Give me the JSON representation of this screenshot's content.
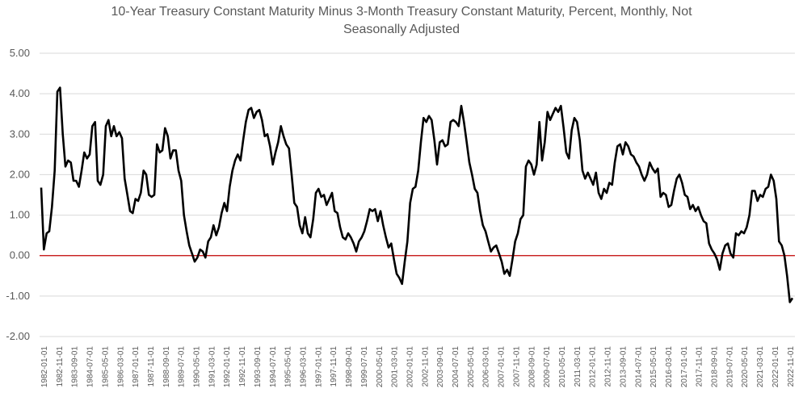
{
  "chart_data": {
    "type": "line",
    "title_lines": [
      "10-Year Treasury Constant Maturity Minus 3-Month Treasury Constant Maturity, Percent, Monthly, Not",
      "Seasonally Adjusted"
    ],
    "xlabel": "",
    "ylabel": "",
    "ylim": [
      -2,
      5
    ],
    "yticks": [
      "5.00",
      "4.00",
      "3.00",
      "2.00",
      "1.00",
      "0.00",
      "-1.00",
      "-2.00"
    ],
    "xtick_labels": [
      "1982-01-01",
      "1982-11-01",
      "1983-09-01",
      "1984-07-01",
      "1985-05-01",
      "1986-03-01",
      "1987-01-01",
      "1987-11-01",
      "1988-09-01",
      "1989-07-01",
      "1990-05-01",
      "1991-03-01",
      "1992-01-01",
      "1992-11-01",
      "1993-09-01",
      "1994-07-01",
      "1995-05-01",
      "1996-03-01",
      "1997-01-01",
      "1997-11-01",
      "1998-09-01",
      "1999-07-01",
      "2000-05-01",
      "2001-03-01",
      "2002-01-01",
      "2002-11-01",
      "2003-09-01",
      "2004-07-01",
      "2005-05-01",
      "2006-03-01",
      "2007-01-01",
      "2007-11-01",
      "2008-09-01",
      "2009-07-01",
      "2010-05-01",
      "2011-03-01",
      "2012-01-01",
      "2012-11-01",
      "2013-09-01",
      "2014-07-01",
      "2015-05-01",
      "2016-03-01",
      "2017-01-01",
      "2017-11-01",
      "2018-09-01",
      "2019-07-01",
      "2020-05-01",
      "2021-03-01",
      "2022-01-01",
      "2022-11-01"
    ],
    "grid": true,
    "legend": "none",
    "zero_line": true,
    "colors": {
      "line": "#000000",
      "grid": "#d9d9d9",
      "zero": "#c00000",
      "text": "#595959"
    },
    "series": [
      {
        "points": [
          [
            "1982-01",
            1.68
          ],
          [
            "1982-02",
            0.15
          ],
          [
            "1982-03",
            0.55
          ],
          [
            "1982-05",
            0.6
          ],
          [
            "1982-07",
            1.2
          ],
          [
            "1982-08",
            2.1
          ],
          [
            "1982-09",
            4.05
          ],
          [
            "1982-10",
            4.15
          ],
          [
            "1982-11",
            3.0
          ],
          [
            "1982-12",
            2.2
          ],
          [
            "1983-01",
            2.35
          ],
          [
            "1983-03",
            2.3
          ],
          [
            "1983-04",
            1.85
          ],
          [
            "1983-06",
            1.85
          ],
          [
            "1983-07",
            1.7
          ],
          [
            "1983-09",
            2.1
          ],
          [
            "1983-11",
            2.55
          ],
          [
            "1984-01",
            2.4
          ],
          [
            "1984-03",
            2.5
          ],
          [
            "1984-04",
            3.2
          ],
          [
            "1984-05",
            3.3
          ],
          [
            "1984-06",
            1.85
          ],
          [
            "1984-07",
            1.75
          ],
          [
            "1984-08",
            2.0
          ],
          [
            "1984-09",
            3.2
          ],
          [
            "1984-10",
            3.35
          ],
          [
            "1984-11",
            2.95
          ],
          [
            "1985-01",
            3.2
          ],
          [
            "1985-03",
            2.95
          ],
          [
            "1985-05",
            3.05
          ],
          [
            "1985-07",
            2.9
          ],
          [
            "1985-08",
            1.9
          ],
          [
            "1985-09",
            1.5
          ],
          [
            "1985-10",
            1.1
          ],
          [
            "1985-11",
            1.05
          ],
          [
            "1986-01",
            1.4
          ],
          [
            "1986-03",
            1.35
          ],
          [
            "1986-04",
            1.55
          ],
          [
            "1986-05",
            2.1
          ],
          [
            "1986-06",
            2.0
          ],
          [
            "1986-07",
            1.5
          ],
          [
            "1986-08",
            1.45
          ],
          [
            "1986-10",
            1.5
          ],
          [
            "1986-11",
            2.75
          ],
          [
            "1987-01",
            2.55
          ],
          [
            "1987-03",
            2.6
          ],
          [
            "1987-04",
            3.15
          ],
          [
            "1987-06",
            2.95
          ],
          [
            "1987-07",
            2.4
          ],
          [
            "1987-08",
            2.6
          ],
          [
            "1987-10",
            2.6
          ],
          [
            "1987-11",
            2.1
          ],
          [
            "1988-01",
            1.85
          ],
          [
            "1988-03",
            1.0
          ],
          [
            "1988-05",
            0.6
          ],
          [
            "1988-07",
            0.25
          ],
          [
            "1988-09",
            0.05
          ],
          [
            "1988-10",
            -0.15
          ],
          [
            "1988-11",
            -0.05
          ],
          [
            "1989-01",
            0.15
          ],
          [
            "1989-02",
            0.1
          ],
          [
            "1989-04",
            -0.05
          ],
          [
            "1989-05",
            0.35
          ],
          [
            "1989-07",
            0.45
          ],
          [
            "1989-08",
            0.75
          ],
          [
            "1989-09",
            0.5
          ],
          [
            "1989-10",
            0.7
          ],
          [
            "1989-12",
            1.05
          ],
          [
            "1990-02",
            1.3
          ],
          [
            "1990-03",
            1.1
          ],
          [
            "1990-05",
            1.7
          ],
          [
            "1990-07",
            2.1
          ],
          [
            "1990-08",
            2.35
          ],
          [
            "1990-10",
            2.5
          ],
          [
            "1990-12",
            2.35
          ],
          [
            "1991-02",
            2.85
          ],
          [
            "1991-04",
            3.3
          ],
          [
            "1991-06",
            3.6
          ],
          [
            "1991-07",
            3.65
          ],
          [
            "1991-09",
            3.4
          ],
          [
            "1991-10",
            3.55
          ],
          [
            "1991-12",
            3.6
          ],
          [
            "1992-01",
            3.35
          ],
          [
            "1992-03",
            2.95
          ],
          [
            "1992-04",
            3.0
          ],
          [
            "1992-06",
            2.7
          ],
          [
            "1992-08",
            2.25
          ],
          [
            "1992-09",
            2.55
          ],
          [
            "1992-11",
            2.8
          ],
          [
            "1992-12",
            3.2
          ],
          [
            "1993-01",
            2.95
          ],
          [
            "1993-03",
            2.75
          ],
          [
            "1993-05",
            2.65
          ],
          [
            "1993-07",
            2.0
          ],
          [
            "1993-09",
            1.3
          ],
          [
            "1993-10",
            1.2
          ],
          [
            "1993-11",
            0.75
          ],
          [
            "1993-12",
            0.55
          ],
          [
            "1994-02",
            0.95
          ],
          [
            "1994-04",
            0.55
          ],
          [
            "1994-05",
            0.45
          ],
          [
            "1994-07",
            0.9
          ],
          [
            "1994-09",
            1.55
          ],
          [
            "1994-10",
            1.65
          ],
          [
            "1994-12",
            1.45
          ],
          [
            "1995-01",
            1.5
          ],
          [
            "1995-03",
            1.25
          ],
          [
            "1995-04",
            1.4
          ],
          [
            "1995-06",
            1.55
          ],
          [
            "1995-08",
            1.1
          ],
          [
            "1995-09",
            1.05
          ],
          [
            "1995-11",
            0.7
          ],
          [
            "1996-01",
            0.45
          ],
          [
            "1996-03",
            0.4
          ],
          [
            "1996-04",
            0.55
          ],
          [
            "1996-06",
            0.45
          ],
          [
            "1996-08",
            0.3
          ],
          [
            "1996-09",
            0.1
          ],
          [
            "1996-10",
            0.35
          ],
          [
            "1996-12",
            0.45
          ],
          [
            "1997-02",
            0.6
          ],
          [
            "1997-03",
            0.85
          ],
          [
            "1997-04",
            1.15
          ],
          [
            "1997-06",
            1.1
          ],
          [
            "1997-07",
            1.15
          ],
          [
            "1997-08",
            0.85
          ],
          [
            "1997-10",
            1.1
          ],
          [
            "1997-12",
            0.75
          ],
          [
            "1998-01",
            0.45
          ],
          [
            "1998-03",
            0.2
          ],
          [
            "1998-04",
            0.3
          ],
          [
            "1998-06",
            -0.1
          ],
          [
            "1998-08",
            -0.45
          ],
          [
            "1998-09",
            -0.55
          ],
          [
            "1998-11",
            -0.7
          ],
          [
            "1999-01",
            -0.15
          ],
          [
            "1999-03",
            0.35
          ],
          [
            "1999-05",
            1.3
          ],
          [
            "1999-06",
            1.65
          ],
          [
            "1999-08",
            1.7
          ],
          [
            "1999-09",
            2.1
          ],
          [
            "1999-11",
            2.8
          ],
          [
            "2000-01",
            3.4
          ],
          [
            "2000-02",
            3.3
          ],
          [
            "2000-03",
            3.45
          ],
          [
            "2000-04",
            3.35
          ],
          [
            "2000-06",
            2.85
          ],
          [
            "2000-07",
            2.25
          ],
          [
            "2000-08",
            2.8
          ],
          [
            "2000-10",
            2.85
          ],
          [
            "2000-12",
            2.7
          ],
          [
            "2001-01",
            2.75
          ],
          [
            "2001-02",
            3.3
          ],
          [
            "2001-04",
            3.35
          ],
          [
            "2001-06",
            3.3
          ],
          [
            "2001-08",
            3.2
          ],
          [
            "2001-09",
            3.7
          ],
          [
            "2001-11",
            3.3
          ],
          [
            "2002-01",
            2.8
          ],
          [
            "2002-03",
            2.3
          ],
          [
            "2002-05",
            2.0
          ],
          [
            "2002-07",
            1.65
          ],
          [
            "2002-08",
            1.55
          ],
          [
            "2002-10",
            1.1
          ],
          [
            "2002-12",
            0.75
          ],
          [
            "2003-02",
            0.6
          ],
          [
            "2003-04",
            0.35
          ],
          [
            "2003-06",
            0.1
          ],
          [
            "2003-08",
            0.2
          ],
          [
            "2003-09",
            0.25
          ],
          [
            "2003-11",
            0.05
          ],
          [
            "2004-01",
            -0.15
          ],
          [
            "2004-03",
            -0.45
          ],
          [
            "2004-05",
            -0.35
          ],
          [
            "2004-07",
            -0.5
          ],
          [
            "2004-09",
            -0.1
          ],
          [
            "2004-11",
            0.35
          ],
          [
            "2005-01",
            0.55
          ],
          [
            "2005-03",
            0.9
          ],
          [
            "2005-04",
            1.0
          ],
          [
            "2005-05",
            2.2
          ],
          [
            "2005-06",
            2.35
          ],
          [
            "2005-07",
            2.25
          ],
          [
            "2005-08",
            2.0
          ],
          [
            "2005-10",
            2.25
          ],
          [
            "2005-12",
            3.3
          ],
          [
            "2006-01",
            2.35
          ],
          [
            "2006-03",
            2.8
          ],
          [
            "2006-05",
            3.55
          ],
          [
            "2006-07",
            3.35
          ],
          [
            "2006-09",
            3.5
          ],
          [
            "2006-11",
            3.65
          ],
          [
            "2007-01",
            3.55
          ],
          [
            "2007-03",
            3.7
          ],
          [
            "2007-05",
            3.15
          ],
          [
            "2007-07",
            2.55
          ],
          [
            "2007-08",
            2.4
          ],
          [
            "2007-09",
            3.1
          ],
          [
            "2007-11",
            3.4
          ],
          [
            "2008-01",
            3.3
          ],
          [
            "2008-03",
            2.85
          ],
          [
            "2008-04",
            2.1
          ],
          [
            "2008-05",
            1.9
          ],
          [
            "2008-07",
            2.05
          ],
          [
            "2008-09",
            1.9
          ],
          [
            "2008-11",
            1.75
          ],
          [
            "2009-01",
            2.05
          ],
          [
            "2009-03",
            1.55
          ],
          [
            "2009-05",
            1.4
          ],
          [
            "2009-07",
            1.65
          ],
          [
            "2009-09",
            1.55
          ],
          [
            "2009-10",
            1.8
          ],
          [
            "2009-12",
            1.75
          ],
          [
            "2010-01",
            2.3
          ],
          [
            "2010-03",
            2.7
          ],
          [
            "2010-05",
            2.75
          ],
          [
            "2010-06",
            2.5
          ],
          [
            "2010-08",
            2.8
          ],
          [
            "2010-10",
            2.7
          ],
          [
            "2010-12",
            2.5
          ],
          [
            "2011-02",
            2.45
          ],
          [
            "2011-03",
            2.3
          ],
          [
            "2011-05",
            2.2
          ],
          [
            "2011-06",
            2.0
          ],
          [
            "2011-07",
            1.85
          ],
          [
            "2011-09",
            2.0
          ],
          [
            "2011-10",
            2.3
          ],
          [
            "2011-12",
            2.15
          ],
          [
            "2012-02",
            2.05
          ],
          [
            "2012-04",
            2.15
          ],
          [
            "2012-06",
            1.45
          ],
          [
            "2012-08",
            1.55
          ],
          [
            "2012-10",
            1.5
          ],
          [
            "2012-12",
            1.2
          ],
          [
            "2013-01",
            1.25
          ],
          [
            "2013-03",
            1.6
          ],
          [
            "2013-05",
            1.9
          ],
          [
            "2013-06",
            2.0
          ],
          [
            "2013-08",
            1.8
          ],
          [
            "2013-09",
            1.5
          ],
          [
            "2013-11",
            1.45
          ],
          [
            "2014-01",
            1.15
          ],
          [
            "2014-03",
            1.25
          ],
          [
            "2014-05",
            1.1
          ],
          [
            "2014-07",
            1.2
          ],
          [
            "2014-09",
            1.0
          ],
          [
            "2014-11",
            0.85
          ],
          [
            "2015-01",
            0.8
          ],
          [
            "2015-03",
            0.3
          ],
          [
            "2015-05",
            0.15
          ],
          [
            "2015-07",
            0.05
          ],
          [
            "2015-09",
            -0.1
          ],
          [
            "2015-10",
            -0.35
          ],
          [
            "2015-12",
            0.05
          ],
          [
            "2016-01",
            0.25
          ],
          [
            "2016-03",
            0.3
          ],
          [
            "2016-04",
            0.05
          ],
          [
            "2016-05",
            -0.05
          ],
          [
            "2016-06",
            0.55
          ],
          [
            "2016-08",
            0.5
          ],
          [
            "2016-09",
            0.6
          ],
          [
            "2016-11",
            0.55
          ],
          [
            "2017-01",
            0.7
          ],
          [
            "2017-03",
            1.0
          ],
          [
            "2017-05",
            1.6
          ],
          [
            "2017-07",
            1.6
          ],
          [
            "2017-08",
            1.35
          ],
          [
            "2017-10",
            1.5
          ],
          [
            "2017-12",
            1.45
          ],
          [
            "2018-01",
            1.65
          ],
          [
            "2018-03",
            1.7
          ],
          [
            "2018-04",
            2.0
          ],
          [
            "2018-06",
            1.85
          ],
          [
            "2018-07",
            1.4
          ],
          [
            "2018-08",
            0.35
          ],
          [
            "2018-09",
            0.25
          ],
          [
            "2018-10",
            0.0
          ],
          [
            "2018-11",
            -0.5
          ],
          [
            "2019-01",
            -1.15
          ],
          [
            "2019-02",
            -1.05
          ]
        ]
      }
    ]
  }
}
